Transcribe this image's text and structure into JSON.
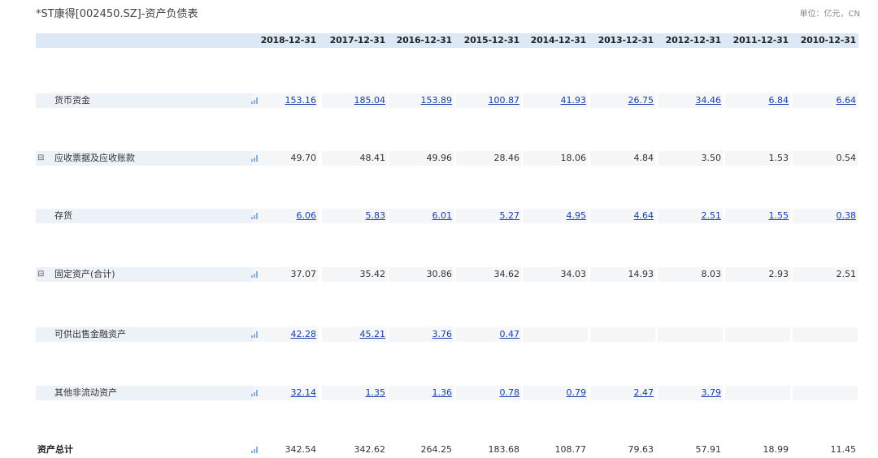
{
  "title": "*ST康得[002450.SZ]-资产负债表",
  "unit": "单位：亿元，CN",
  "dates": [
    "2018-12-31",
    "2017-12-31",
    "2016-12-31",
    "2015-12-31",
    "2014-12-31",
    "2013-12-31",
    "2012-12-31",
    "2011-12-31",
    "2010-12-31"
  ],
  "rows": [
    {
      "label": "货币资金",
      "toggle": "",
      "link": true,
      "values": [
        "153.16",
        "185.04",
        "153.89",
        "100.87",
        "41.93",
        "26.75",
        "34.46",
        "6.84",
        "6.64"
      ]
    },
    {
      "label": "应收票据及应收账款",
      "toggle": "⊟",
      "link": false,
      "values": [
        "49.70",
        "48.41",
        "49.96",
        "28.46",
        "18.06",
        "4.84",
        "3.50",
        "1.53",
        "0.54"
      ]
    },
    {
      "label": "存货",
      "toggle": "",
      "link": true,
      "values": [
        "6.06",
        "5.83",
        "6.01",
        "5.27",
        "4.95",
        "4.64",
        "2.51",
        "1.55",
        "0.38"
      ]
    },
    {
      "label": "固定资产(合计)",
      "toggle": "⊟",
      "link": false,
      "values": [
        "37.07",
        "35.42",
        "30.86",
        "34.62",
        "34.03",
        "14.93",
        "8.03",
        "2.93",
        "2.51"
      ]
    },
    {
      "label": "可供出售金融资产",
      "toggle": "",
      "link": true,
      "values": [
        "42.28",
        "45.21",
        "3.76",
        "0.47",
        "",
        "",
        "",
        "",
        ""
      ]
    },
    {
      "label": "其他非流动资产",
      "toggle": "",
      "link": true,
      "values": [
        "32.14",
        "1.35",
        "1.36",
        "0.78",
        "0.79",
        "2.47",
        "3.79",
        "",
        ""
      ]
    },
    {
      "label": "资产总计",
      "toggle": "",
      "link": false,
      "total": true,
      "values": [
        "342.54",
        "342.62",
        "264.25",
        "183.68",
        "108.77",
        "79.63",
        "57.91",
        "18.99",
        "11.45"
      ]
    }
  ],
  "icons": {
    "chart": "bar-chart-icon",
    "collapse": "collapse-icon"
  },
  "colors": {
    "header_bg": "#dce8f5",
    "link": "#1a3ea6",
    "row_bg": "#edf2f8"
  }
}
